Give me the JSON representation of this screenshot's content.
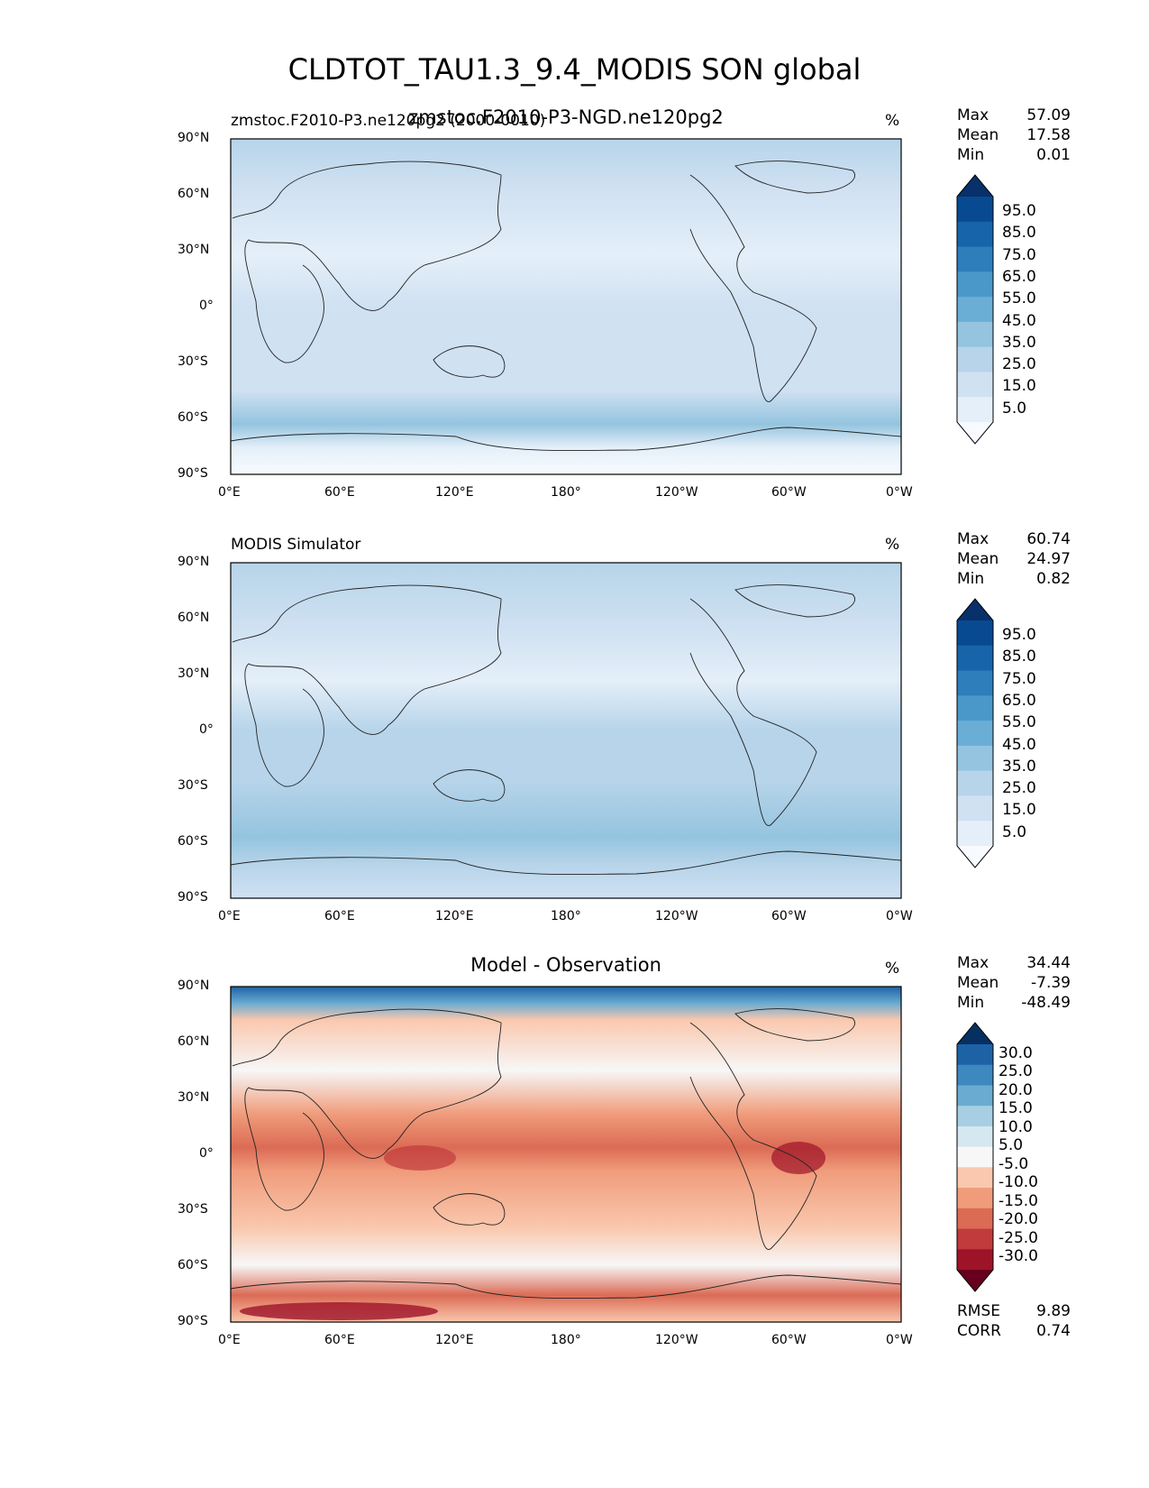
{
  "title": "CLDTOT_TAU1.3_9.4_MODIS SON global",
  "panels": [
    {
      "left_title": "zmstoc.F2010-P3.ne120pg2 (2000-0010)",
      "center_title": "zmstoc.F2010-P3-NGD.ne120pg2",
      "units": "%",
      "stats": [
        [
          "Max",
          "57.09"
        ],
        [
          "Mean",
          "17.58"
        ],
        [
          "Min",
          "0.01"
        ]
      ],
      "colorbar_labels": [
        "95.0",
        "85.0",
        "75.0",
        "65.0",
        "55.0",
        "45.0",
        "35.0",
        "25.0",
        "15.0",
        "5.0"
      ]
    },
    {
      "left_title": "MODIS Simulator",
      "center_title": "",
      "units": "%",
      "stats": [
        [
          "Max",
          "60.74"
        ],
        [
          "Mean",
          "24.97"
        ],
        [
          "Min",
          "0.82"
        ]
      ],
      "colorbar_labels": [
        "95.0",
        "85.0",
        "75.0",
        "65.0",
        "55.0",
        "45.0",
        "35.0",
        "25.0",
        "15.0",
        "5.0"
      ]
    },
    {
      "left_title": "",
      "center_title": "Model - Observation",
      "units": "%",
      "stats": [
        [
          "Max",
          "34.44"
        ],
        [
          "Mean",
          "-7.39"
        ],
        [
          "Min",
          "-48.49"
        ]
      ],
      "colorbar_labels": [
        "30.0",
        "25.0",
        "20.0",
        "15.0",
        "10.0",
        "5.0",
        "-5.0",
        "-10.0",
        "-15.0",
        "-20.0",
        "-25.0",
        "-30.0"
      ],
      "metrics": [
        [
          "RMSE",
          "9.89"
        ],
        [
          "CORR",
          "0.74"
        ]
      ]
    }
  ],
  "chart_data": [
    {
      "type": "heatmap",
      "title": "zmstoc.F2010-P3-NGD.ne120pg2",
      "units": "%",
      "xticks": [
        "0°E",
        "60°E",
        "120°E",
        "180°",
        "120°W",
        "60°W",
        "0°W"
      ],
      "yticks": [
        "90°N",
        "60°N",
        "30°N",
        "0°",
        "30°S",
        "60°S",
        "90°S"
      ],
      "levels": [
        5,
        15,
        25,
        35,
        45,
        55,
        65,
        75,
        85,
        95
      ],
      "colormap": "Blues",
      "max": 57.09,
      "mean": 17.58,
      "min": 0.01
    },
    {
      "type": "heatmap",
      "title": "MODIS Simulator",
      "units": "%",
      "xticks": [
        "0°E",
        "60°E",
        "120°E",
        "180°",
        "120°W",
        "60°W",
        "0°W"
      ],
      "yticks": [
        "90°N",
        "60°N",
        "30°N",
        "0°",
        "30°S",
        "60°S",
        "90°S"
      ],
      "levels": [
        5,
        15,
        25,
        35,
        45,
        55,
        65,
        75,
        85,
        95
      ],
      "colormap": "Blues",
      "max": 60.74,
      "mean": 24.97,
      "min": 0.82
    },
    {
      "type": "heatmap",
      "title": "Model - Observation",
      "units": "%",
      "xticks": [
        "0°E",
        "60°E",
        "120°E",
        "180°",
        "120°W",
        "60°W",
        "0°W"
      ],
      "yticks": [
        "90°N",
        "60°N",
        "30°N",
        "0°",
        "30°S",
        "60°S",
        "90°S"
      ],
      "levels": [
        -30,
        -25,
        -20,
        -15,
        -10,
        -5,
        5,
        10,
        15,
        20,
        25,
        30
      ],
      "colormap": "RdBu",
      "max": 34.44,
      "mean": -7.39,
      "min": -48.49,
      "rmse": 9.89,
      "corr": 0.74
    }
  ],
  "colors": {
    "blues": [
      "#f7fbff",
      "#e4eff9",
      "#d0e1f2",
      "#b7d4ea",
      "#94c4df",
      "#6aaed6",
      "#4a98c9",
      "#2e7ebc",
      "#1764ab",
      "#084a91",
      "#08306b"
    ],
    "rdbu": [
      "#67001f",
      "#9e1328",
      "#c13b3c",
      "#db6b55",
      "#f09c7b",
      "#fac8ae",
      "#f7f7f7",
      "#d5e7f0",
      "#a6cfe3",
      "#6aabd1",
      "#3d88bf",
      "#1e62a6",
      "#053061"
    ]
  }
}
